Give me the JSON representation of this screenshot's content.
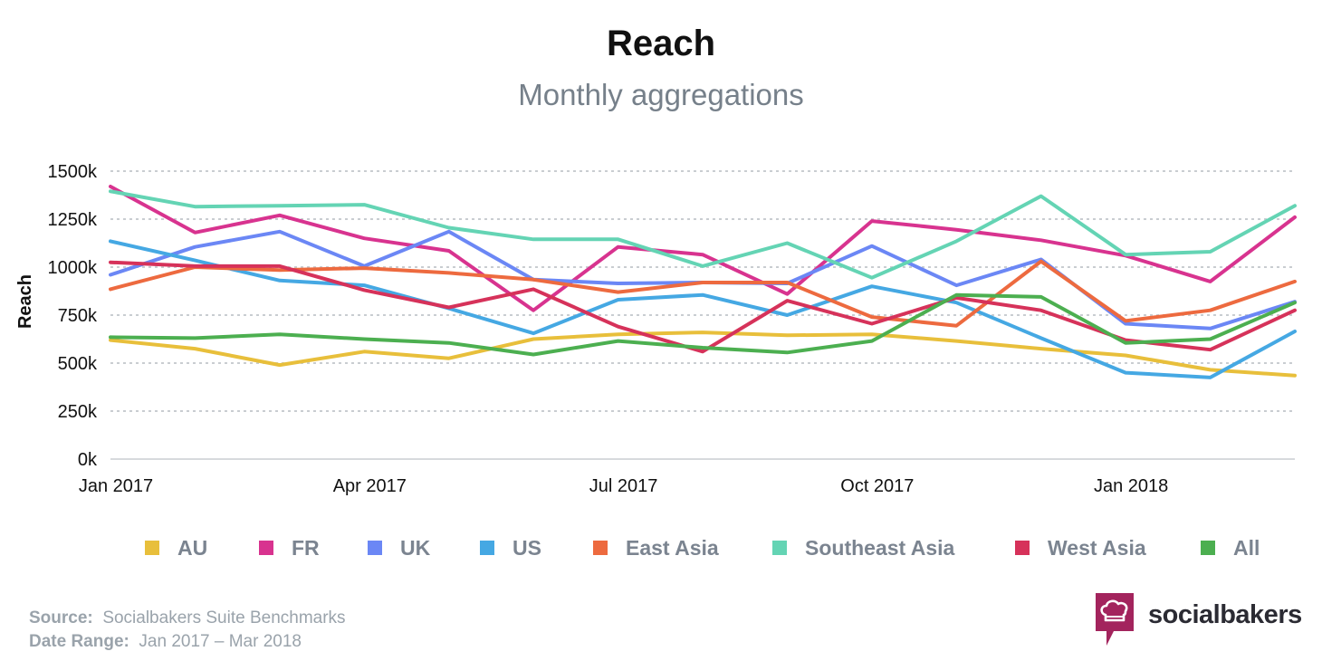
{
  "chart_data": {
    "type": "line",
    "title": "Reach",
    "subtitle": "Monthly aggregations",
    "ylabel": "Reach",
    "xlabel": "",
    "ylim": [
      0,
      1500000
    ],
    "yticks": [
      {
        "value": 0,
        "label": "0k"
      },
      {
        "value": 250000,
        "label": "250k"
      },
      {
        "value": 500000,
        "label": "500k"
      },
      {
        "value": 750000,
        "label": "750k"
      },
      {
        "value": 1000000,
        "label": "1000k"
      },
      {
        "value": 1250000,
        "label": "1250k"
      },
      {
        "value": 1500000,
        "label": "1500k"
      }
    ],
    "x": [
      "Jan 2017",
      "Feb 2017",
      "Mar 2017",
      "Apr 2017",
      "May 2017",
      "Jun 2017",
      "Jul 2017",
      "Aug 2017",
      "Sep 2017",
      "Oct 2017",
      "Nov 2017",
      "Dec 2017",
      "Jan 2018",
      "Feb 2018",
      "Mar 2018"
    ],
    "xticks": [
      {
        "index": 0,
        "label": "Jan 2017"
      },
      {
        "index": 3,
        "label": "Apr 2017"
      },
      {
        "index": 6,
        "label": "Jul 2017"
      },
      {
        "index": 9,
        "label": "Oct 2017"
      },
      {
        "index": 12,
        "label": "Jan 2018"
      }
    ],
    "grid": true,
    "legend_position": "bottom",
    "series": [
      {
        "name": "AU",
        "color": "#e8bf3b",
        "values": [
          620000,
          575000,
          490000,
          560000,
          525000,
          625000,
          650000,
          660000,
          645000,
          650000,
          615000,
          575000,
          540000,
          465000,
          435000
        ]
      },
      {
        "name": "FR",
        "color": "#d8338f",
        "values": [
          1420000,
          1180000,
          1270000,
          1150000,
          1085000,
          775000,
          1105000,
          1065000,
          860000,
          1240000,
          1195000,
          1140000,
          1060000,
          925000,
          1260000
        ]
      },
      {
        "name": "UK",
        "color": "#6b87f5",
        "values": [
          960000,
          1105000,
          1185000,
          1005000,
          1185000,
          935000,
          915000,
          920000,
          915000,
          1110000,
          905000,
          1040000,
          705000,
          680000,
          820000
        ]
      },
      {
        "name": "US",
        "color": "#45a8e3",
        "values": [
          1135000,
          1035000,
          930000,
          905000,
          785000,
          655000,
          830000,
          855000,
          750000,
          900000,
          815000,
          630000,
          450000,
          425000,
          665000
        ]
      },
      {
        "name": "East Asia",
        "color": "#ed6a3f",
        "values": [
          885000,
          1000000,
          985000,
          995000,
          970000,
          935000,
          870000,
          920000,
          920000,
          740000,
          695000,
          1030000,
          720000,
          775000,
          925000
        ]
      },
      {
        "name": "Southeast Asia",
        "color": "#64d4b4",
        "values": [
          1395000,
          1315000,
          1320000,
          1325000,
          1205000,
          1145000,
          1145000,
          1005000,
          1125000,
          945000,
          1135000,
          1370000,
          1065000,
          1080000,
          1320000
        ]
      },
      {
        "name": "West Asia",
        "color": "#d6325a",
        "values": [
          1025000,
          1005000,
          1005000,
          880000,
          790000,
          885000,
          690000,
          560000,
          825000,
          705000,
          840000,
          775000,
          620000,
          570000,
          775000
        ]
      },
      {
        "name": "All",
        "color": "#4caf50",
        "values": [
          635000,
          630000,
          650000,
          625000,
          605000,
          545000,
          615000,
          580000,
          555000,
          615000,
          855000,
          845000,
          605000,
          625000,
          815000
        ]
      }
    ]
  },
  "footer": {
    "source_label": "Source:",
    "source_value": "Socialbakers Suite Benchmarks",
    "range_label": "Date Range:",
    "range_value": "Jan 2017  – Mar 2018"
  },
  "brand": {
    "name": "socialbakers",
    "icon": "chef-hat-speech-bubble-icon",
    "color": "#a3245d"
  }
}
